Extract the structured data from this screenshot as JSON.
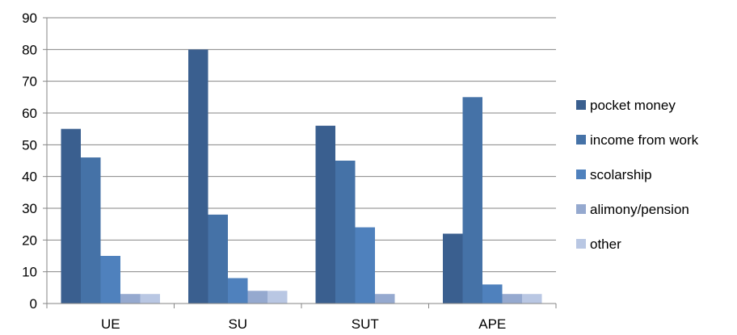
{
  "chart_data": {
    "type": "bar",
    "title": "",
    "xlabel": "",
    "ylabel": "",
    "ylim": [
      0,
      90
    ],
    "y_ticks": [
      0,
      10,
      20,
      30,
      40,
      50,
      60,
      70,
      80,
      90
    ],
    "grid": true,
    "legend_position": "right",
    "categories": [
      "UE",
      "SU",
      "SUT",
      "APE"
    ],
    "series": [
      {
        "name": "pocket money",
        "color": "#3A5F8F",
        "values": [
          55,
          80,
          56,
          22
        ]
      },
      {
        "name": "income from work",
        "color": "#4572A7",
        "values": [
          46,
          28,
          45,
          65
        ]
      },
      {
        "name": "scolarship",
        "color": "#4F81BD",
        "values": [
          15,
          8,
          24,
          6
        ]
      },
      {
        "name": "alimony/pension",
        "color": "#95A9CF",
        "values": [
          3,
          4,
          3,
          3
        ]
      },
      {
        "name": "other",
        "color": "#B9C7E3",
        "values": [
          3,
          4,
          0,
          3
        ]
      }
    ]
  }
}
